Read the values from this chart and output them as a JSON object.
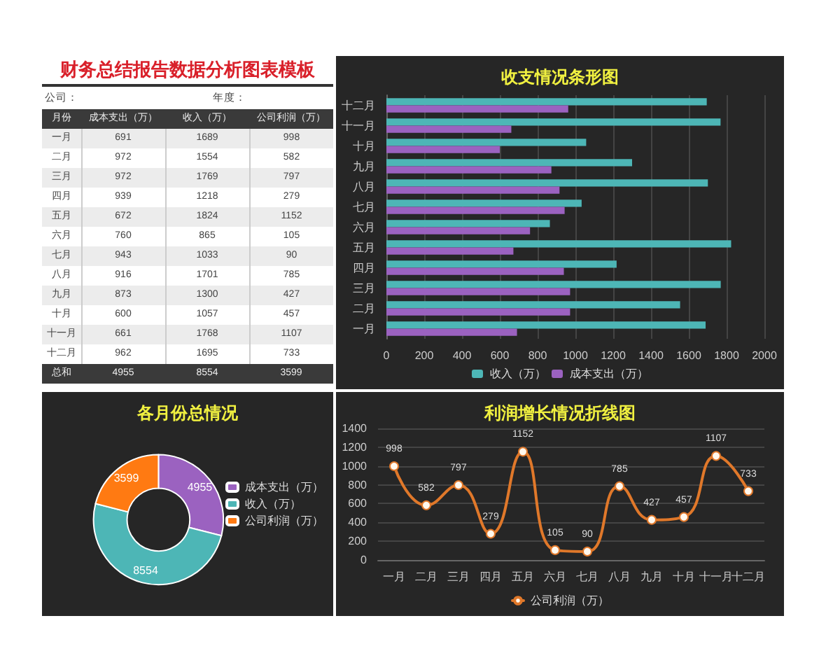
{
  "chart_data": [
    {
      "type": "other",
      "title": "财务总结报告数据分析图表模板",
      "annotations": [
        "公司：",
        "年度：",
        "总和"
      ],
      "xlabel": "月份",
      "categories": [
        "一月",
        "二月",
        "三月",
        "四月",
        "五月",
        "六月",
        "七月",
        "八月",
        "九月",
        "十月",
        "十一月",
        "十二月"
      ],
      "series": [
        {
          "name": "成本支出（万）",
          "colors": [
            "#ececec",
            "#ffffff",
            "#ececec",
            "#ffffff",
            "#ececec",
            "#ffffff",
            "#ececec",
            "#ffffff",
            "#ececec",
            "#ffffff",
            "#ececec",
            "#ffffff"
          ],
          "values": [
            691,
            972,
            972,
            939,
            672,
            760,
            943,
            916,
            873,
            600,
            661,
            962
          ]
        },
        {
          "name": "收入（万）",
          "colors": [
            "#ececec",
            "#ffffff",
            "#ececec",
            "#ffffff",
            "#ececec",
            "#ffffff",
            "#ececec",
            "#ffffff",
            "#ececec",
            "#ffffff",
            "#ececec",
            "#ffffff"
          ],
          "values": [
            1689,
            1554,
            1769,
            1218,
            1824,
            865,
            1033,
            1701,
            1300,
            1057,
            1768,
            1695
          ]
        },
        {
          "name": "公司利润（万）",
          "colors": [
            "#ececec",
            "#ffffff",
            "#ececec",
            "#ffffff",
            "#ececec",
            "#ffffff",
            "#ececec",
            "#ffffff",
            "#ececec",
            "#ffffff",
            "#ececec",
            "#ffffff"
          ],
          "values": [
            998,
            582,
            797,
            279,
            1152,
            105,
            90,
            785,
            427,
            457,
            1107,
            733
          ]
        }
      ],
      "totals": [
        "4955",
        "8554",
        "3599"
      ],
      "data_labels": true
    },
    {
      "type": "bar",
      "orientation": "horizontal",
      "title": "收支情况条形图",
      "categories": [
        "十二月",
        "十一月",
        "十月",
        "九月",
        "八月",
        "七月",
        "六月",
        "五月",
        "四月",
        "三月",
        "二月",
        "一月"
      ],
      "series": [
        {
          "name": "收入（万）",
          "color": "#4db6b6",
          "values": [
            1695,
            1768,
            1057,
            1300,
            1701,
            1033,
            865,
            1824,
            1218,
            1769,
            1554,
            1689
          ]
        },
        {
          "name": "成本支出（万）",
          "color": "#9b62c0",
          "values": [
            962,
            661,
            600,
            873,
            916,
            943,
            760,
            672,
            939,
            972,
            972,
            691
          ]
        }
      ],
      "xlim": [
        0,
        2000
      ],
      "xticks": [
        0,
        200,
        400,
        600,
        800,
        1000,
        1200,
        1400,
        1600,
        1800,
        2000
      ],
      "grid": "x",
      "legend": "bottom"
    },
    {
      "type": "donut",
      "title": "各月份总情况",
      "categories": [
        "成本支出（万）",
        "收入（万）",
        "公司利润（万）"
      ],
      "values": [
        4955,
        8554,
        3599
      ],
      "colors": [
        "#9b62c0",
        "#4db6b6",
        "#ff7a12"
      ],
      "data_labels": true,
      "legend": "right"
    },
    {
      "type": "line",
      "title": "利润增长情况折线图",
      "categories": [
        "一月",
        "二月",
        "三月",
        "四月",
        "五月",
        "六月",
        "七月",
        "八月",
        "九月",
        "十月",
        "十一月",
        "十二月"
      ],
      "series": [
        {
          "name": "公司利润（万）",
          "color": "#e0782a",
          "values": [
            998,
            582,
            797,
            279,
            1152,
            105,
            90,
            785,
            427,
            457,
            1107,
            733
          ]
        }
      ],
      "ylim": [
        0,
        1400
      ],
      "yticks": [
        0,
        200,
        400,
        600,
        800,
        1000,
        1200,
        1400
      ],
      "grid": "y",
      "legend": "bottom",
      "marker": "circle",
      "data_labels": true
    }
  ]
}
